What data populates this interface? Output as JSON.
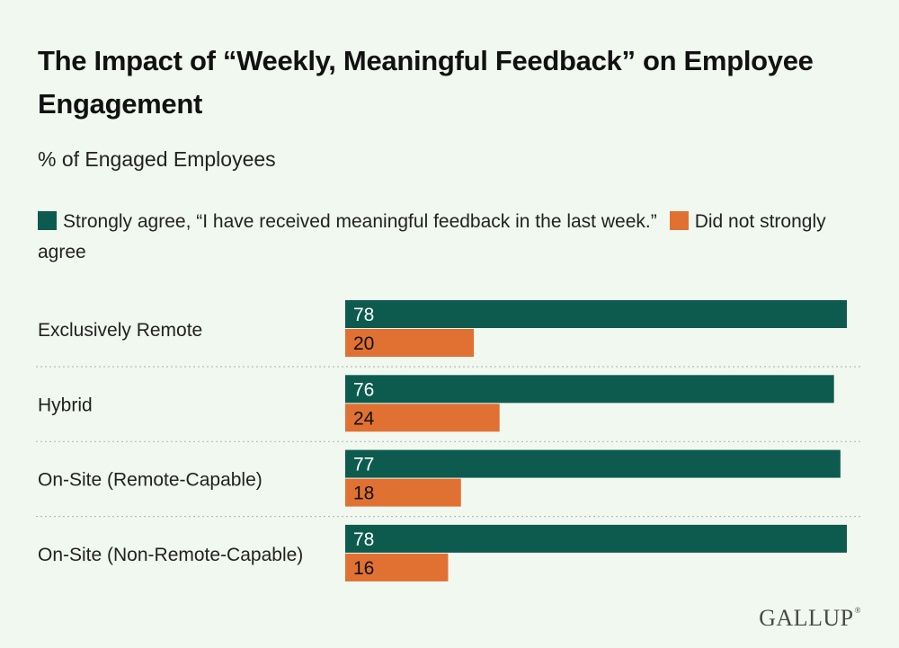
{
  "colors": {
    "strongly_agree": "#0d5b4f",
    "did_not_strongly_agree": "#e07132",
    "background": "#f1f8ef",
    "divider": "#b9bfb8"
  },
  "brand": {
    "name": "GALLUP",
    "mark": "®"
  },
  "chart_data": {
    "type": "bar",
    "orientation": "horizontal",
    "title": "The Impact of “Weekly, Meaningful Feedback” on Employee Engagement",
    "subtitle": "% of Engaged Employees",
    "categories": [
      "Exclusively Remote",
      "Hybrid",
      "On-Site (Remote-Capable)",
      "On-Site (Non-Remote-Capable)"
    ],
    "series": [
      {
        "name": "Strongly agree, “I have received meaningful feedback in the last week.”",
        "values": [
          78,
          76,
          77,
          78
        ]
      },
      {
        "name": "Did not strongly agree",
        "values": [
          20,
          24,
          18,
          16
        ]
      }
    ],
    "xlim": [
      0,
      78
    ],
    "grid": false,
    "legend": "top-left",
    "data_labels": "inside-start"
  }
}
